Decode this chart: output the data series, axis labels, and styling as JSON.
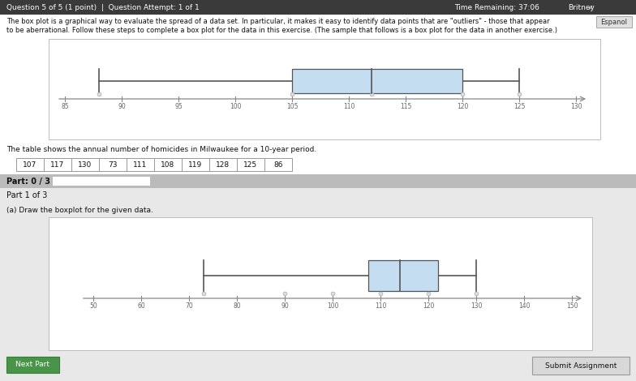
{
  "sample_box": {
    "min": 88,
    "q1": 105,
    "median": 112,
    "q3": 120,
    "max": 125,
    "axis_min": 85,
    "axis_max": 130,
    "axis_ticks": [
      85,
      90,
      95,
      100,
      105,
      110,
      115,
      120,
      125,
      130
    ],
    "circle_vals": [
      88,
      105,
      112,
      120,
      125
    ]
  },
  "main_box": {
    "min": 73,
    "q1": 107.5,
    "median": 114.0,
    "q3": 122.0,
    "max": 130,
    "axis_min": 50,
    "axis_max": 150,
    "axis_ticks": [
      50,
      60,
      70,
      80,
      90,
      100,
      110,
      120,
      130,
      140,
      150
    ],
    "circle_vals": [
      73,
      90,
      100,
      110,
      120,
      130
    ]
  },
  "table_data": [
    107,
    117,
    130,
    73,
    111,
    108,
    119,
    128,
    125,
    86
  ],
  "box_facecolor": "#c5ddf0",
  "box_edgecolor": "#555555",
  "whisker_color": "#555555",
  "median_color": "#555555",
  "cap_color": "#555555",
  "bg_color": "#d8d8d8",
  "white": "#ffffff",
  "gray_header": "#c0c0c0",
  "light_gray": "#e8e8e8",
  "dark_header": "#555555",
  "text_dark": "#111111",
  "text_gray": "#444444",
  "axis_arrow_color": "#888888",
  "tick_label_color": "#666666",
  "circle_color": "#aaaaaa",
  "circle_face": "#dddddd",
  "title_bar_color": "#3a3a3a",
  "esp_btn_color": "#e0e0e0",
  "submit_btn_color": "#d8d8d8",
  "next_btn_color": "#4a944a",
  "title_text": "Question 5 of 5 (1 point)  |  Question Attempt: 1 of 1",
  "time_text": "Time Remaining: 37:06",
  "britney_text": "Britney",
  "desc_line1": "The box plot is a graphical way to evaluate the spread of a data set. In particular, it makes it easy to identify data points that are \"outliers\" - those that appear",
  "desc_line2": "to be aberrational. Follow these steps to complete a box plot for the data in this exercise. (The sample that follows is a box plot for the data in another exercise.)",
  "table_label": "The table shows the annual number of homicides in Milwaukee for a 10-year period.",
  "part_label": "Part: 0 / 3",
  "part1_label": "Part 1 of 3",
  "instruction": "(a) Draw the boxplot for the given data.",
  "submit_btn_text": "Submit Assignment",
  "next_btn_text": "Next Part",
  "espanol_text": "Espanol"
}
